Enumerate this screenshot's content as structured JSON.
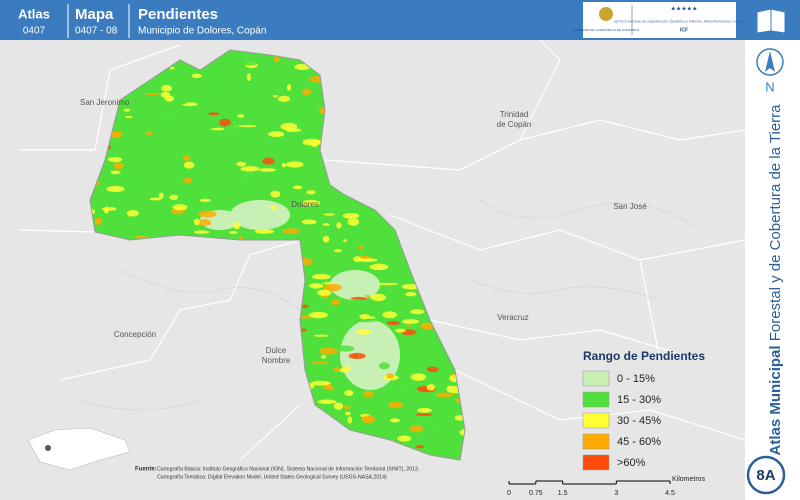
{
  "header": {
    "atlas_label": "Atlas",
    "atlas_code": "0407",
    "map_label": "Mapa",
    "map_code": "0407 - 08",
    "title": "Pendientes",
    "subtitle": "Municipio de Dolores, Copán",
    "logo_government": "GOBIERNO DE LA REPÚBLICA DE HONDURAS",
    "logo_institute": "INSTITUTO NACIONAL DE CONSERVACIÓN Y DESARROLLO FORESTAL, ÁREAS PROTEGIDAS Y VIDA SILVESTRE",
    "logo_acronym": "ICF"
  },
  "side": {
    "north": "N",
    "atlas_bold": "Atlas Municipal",
    "atlas_rest": "Forestal y de Cobertura de la Tierra",
    "badge": "8A"
  },
  "places": [
    "San Jeronimo",
    "Trinidad de Copán",
    "San José",
    "Dolores",
    "Veracruz",
    "Concepción",
    "Dulce Nombre"
  ],
  "legend": {
    "title": "Rango de Pendientes",
    "items": [
      {
        "label": "0 - 15%",
        "color": "#c8f0b4"
      },
      {
        "label": "15 - 30%",
        "color": "#4fe03c"
      },
      {
        "label": "30 - 45%",
        "color": "#ffff32"
      },
      {
        "label": "45 - 60%",
        "color": "#ffaa00"
      },
      {
        "label": ">60%",
        "color": "#ff4b0a"
      }
    ]
  },
  "scale": {
    "ticks": [
      0,
      0.75,
      1.5,
      3,
      4.5
    ],
    "unit": "Kilometros"
  },
  "source": {
    "label": "Fuente:",
    "line1": "Cartografía Básica: Instituto Geográfico Nacional (IGN), Sistema Nacional de Información Territorial (SINIT), 2013.",
    "line2": "Cartografía Temática: Digital Elevation Model, United States Geological Survey (USGS-NASA,2014)"
  }
}
